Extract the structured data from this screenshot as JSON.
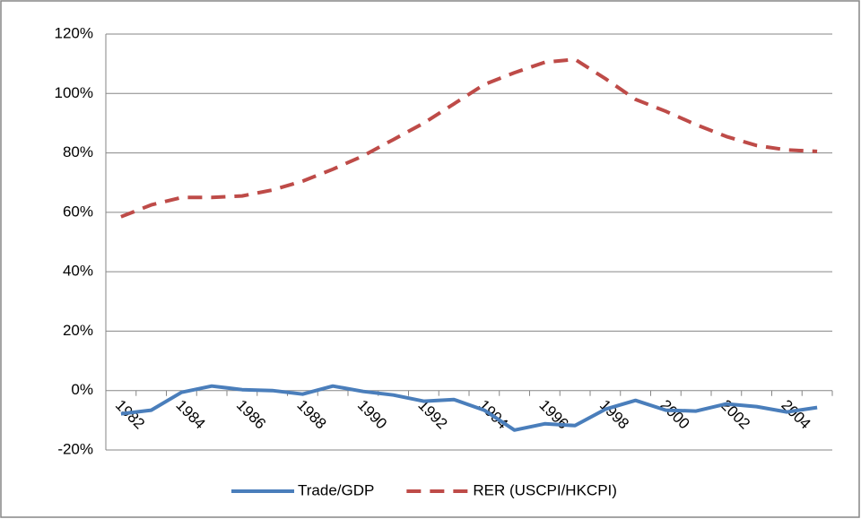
{
  "chart_data": {
    "type": "line",
    "categories": [
      "1982",
      null,
      "1984",
      null,
      "1986",
      null,
      "1988",
      null,
      "1990",
      null,
      "1992",
      null,
      "1994",
      null,
      "1996",
      null,
      "1998",
      null,
      "2000",
      null,
      "2002",
      null,
      "2004",
      null
    ],
    "series": [
      {
        "name": "Trade/GDP",
        "color": "#4a7ebb",
        "dash": false,
        "values": [
          -7.8,
          -6.6,
          -0.6,
          1.5,
          0.3,
          0,
          -1.2,
          1.5,
          -0.3,
          -1.5,
          -3.6,
          -3,
          -6.6,
          -13.3,
          -11.2,
          -11.8,
          -6.3,
          -3.3,
          -6.6,
          -6.9,
          -4.5,
          -5.4,
          -7.2,
          -5.7
        ]
      },
      {
        "name": "RER (USCPI/HKCPI)",
        "color": "#be4b48",
        "dash": true,
        "values": [
          58.5,
          62.5,
          65,
          65,
          65.5,
          67.5,
          70.5,
          74.5,
          79,
          84.5,
          90,
          96.5,
          103,
          107,
          110.5,
          111.5,
          105,
          98,
          94,
          89.5,
          85.5,
          82.5,
          81,
          80.5
        ]
      }
    ],
    "ylim": [
      -20,
      120
    ],
    "yticks": [
      {
        "value": -20,
        "label": "-20%"
      },
      {
        "value": 0,
        "label": "0%"
      },
      {
        "value": 20,
        "label": "20%"
      },
      {
        "value": 40,
        "label": "40%"
      },
      {
        "value": 60,
        "label": "60%"
      },
      {
        "value": 80,
        "label": "80%"
      },
      {
        "value": 100,
        "label": "100%"
      },
      {
        "value": 120,
        "label": "120%"
      }
    ],
    "grid": true,
    "legend": "bottom"
  }
}
